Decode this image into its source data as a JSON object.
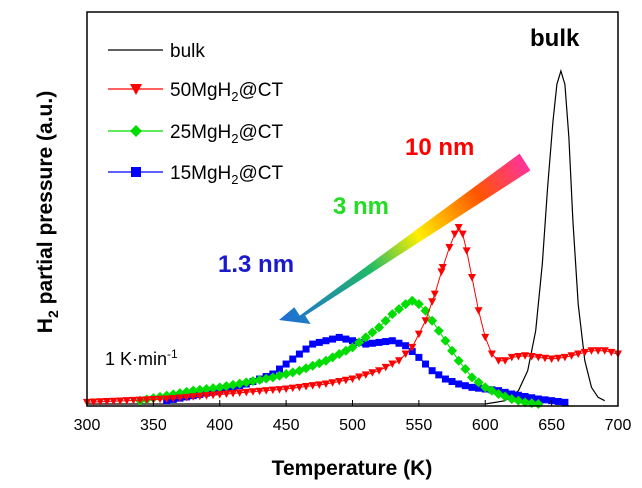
{
  "chart_data": {
    "type": "line",
    "xlabel": "Temperature (K)",
    "ylabel": {
      "pre": "H",
      "sub": "2",
      "post": " partial pressure (a.u.)"
    },
    "xlim": [
      300,
      700
    ],
    "ylim": [
      0,
      1
    ],
    "xticks": [
      300,
      350,
      400,
      450,
      500,
      550,
      600,
      650,
      700
    ],
    "grid": false,
    "legend_position": "top-left",
    "series": [
      {
        "name": "bulk",
        "legend": {
          "pre": "bulk",
          "sub": "",
          "post": ""
        },
        "color": "#000000",
        "marker": "none",
        "x": [
          300,
          400,
          500,
          600,
          615,
          625,
          632,
          638,
          643,
          647,
          651,
          654,
          657,
          660,
          663,
          666,
          670,
          675,
          680,
          685,
          690
        ],
        "y": [
          0.0,
          0.0,
          0.0,
          0.0,
          0.01,
          0.04,
          0.1,
          0.22,
          0.42,
          0.65,
          0.85,
          0.96,
          1.0,
          0.96,
          0.8,
          0.55,
          0.3,
          0.13,
          0.05,
          0.02,
          0.01
        ]
      },
      {
        "name": "50MgH2@CT",
        "legend": {
          "pre": "50MgH",
          "sub": "2",
          "post": "@CT"
        },
        "color": "#ff0000",
        "marker": "triangle-down",
        "x": [
          300,
          330,
          360,
          390,
          420,
          450,
          480,
          500,
          520,
          535,
          545,
          555,
          562,
          568,
          573,
          577,
          580,
          583,
          586,
          590,
          595,
          600,
          605,
          610,
          615,
          620,
          630,
          640,
          650,
          660,
          670,
          680,
          690,
          700
        ],
        "y": [
          0.005,
          0.01,
          0.015,
          0.025,
          0.035,
          0.045,
          0.06,
          0.075,
          0.1,
          0.13,
          0.17,
          0.25,
          0.33,
          0.41,
          0.47,
          0.51,
          0.53,
          0.51,
          0.46,
          0.38,
          0.28,
          0.2,
          0.15,
          0.13,
          0.13,
          0.14,
          0.145,
          0.14,
          0.135,
          0.14,
          0.15,
          0.16,
          0.16,
          0.15
        ]
      },
      {
        "name": "25MgH2@CT",
        "legend": {
          "pre": "25MgH",
          "sub": "2",
          "post": "@CT"
        },
        "color": "#00dd00",
        "marker": "diamond",
        "x": [
          340,
          360,
          380,
          400,
          420,
          440,
          460,
          480,
          500,
          510,
          520,
          530,
          540,
          545,
          550,
          555,
          560,
          570,
          580,
          590,
          600,
          610,
          620,
          630,
          640
        ],
        "y": [
          0.01,
          0.025,
          0.04,
          0.05,
          0.065,
          0.08,
          0.1,
          0.13,
          0.17,
          0.2,
          0.23,
          0.27,
          0.3,
          0.31,
          0.3,
          0.28,
          0.25,
          0.19,
          0.13,
          0.08,
          0.05,
          0.03,
          0.015,
          0.005,
          0.0
        ]
      },
      {
        "name": "15MgH2@CT",
        "legend": {
          "pre": "15MgH",
          "sub": "2",
          "post": "@CT"
        },
        "color": "#0000ff",
        "marker": "square",
        "x": [
          360,
          380,
          400,
          420,
          440,
          450,
          460,
          470,
          480,
          490,
          500,
          510,
          520,
          530,
          540,
          550,
          560,
          570,
          580,
          590,
          600,
          610,
          620,
          640,
          660
        ],
        "y": [
          0.01,
          0.025,
          0.04,
          0.06,
          0.09,
          0.12,
          0.15,
          0.18,
          0.19,
          0.2,
          0.19,
          0.18,
          0.185,
          0.19,
          0.175,
          0.14,
          0.1,
          0.075,
          0.06,
          0.05,
          0.045,
          0.04,
          0.03,
          0.015,
          0.005
        ]
      }
    ],
    "annotations": {
      "bulk_label": {
        "text": "bulk",
        "color": "#000000"
      },
      "size_10": {
        "text": "10 nm",
        "color": "#ff0000"
      },
      "size_3": {
        "text": "3 nm",
        "color": "#22dd22"
      },
      "size_1_3": {
        "text": "1.3 nm",
        "color": "#1a1acc"
      },
      "rate": {
        "pre": "1 K·min",
        "sup": "-1"
      }
    }
  }
}
